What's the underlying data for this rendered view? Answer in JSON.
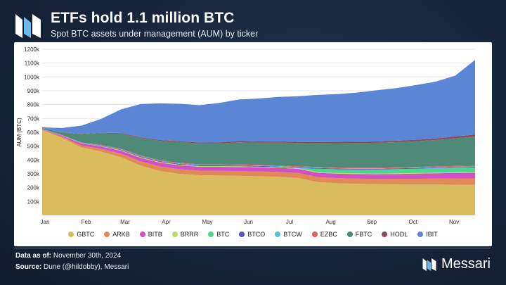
{
  "header": {
    "title": "ETFs hold 1.1 million BTC",
    "subtitle": "Spot BTC assets under management (AUM) by ticker"
  },
  "footer": {
    "data_as_of_label": "Data as of:",
    "data_as_of_value": "November 30th, 2024",
    "source_label": "Source:",
    "source_value": "Dune (@hildobby), Messari",
    "brand": "Messari"
  },
  "colors": {
    "GBTC": "#d9bc5e",
    "ARKB": "#e08a55",
    "BITB": "#d34fc6",
    "BRRR": "#b9d96a",
    "BTC": "#4dd68c",
    "BTCO": "#5a52c9",
    "BTCW": "#4fc3d9",
    "EZBC": "#d9645a",
    "FBTC": "#4f8a78",
    "HODL": "#8a4a5a",
    "IBIT": "#5b86d6"
  },
  "chart_data": {
    "type": "area",
    "stacked": true,
    "title": "ETFs hold 1.1 million BTC",
    "subtitle": "Spot BTC assets under management (AUM) by ticker",
    "ylabel": "AUM (BTC)",
    "xlabel": "",
    "ylim": [
      0,
      1200000
    ],
    "yticks": [
      "100k",
      "200k",
      "300k",
      "400k",
      "500k",
      "600k",
      "700k",
      "800k",
      "900k",
      "1000k",
      "1100k",
      "1200k"
    ],
    "xticks": [
      "Jan",
      "Feb",
      "Mar",
      "Apr",
      "May",
      "Jun",
      "Jul",
      "Aug",
      "Sep",
      "Oct",
      "Nov"
    ],
    "grid": true,
    "legend": "bottom",
    "x": [
      "Jan 11",
      "Jan 20",
      "Feb 1",
      "Feb 15",
      "Mar 1",
      "Mar 15",
      "Apr 1",
      "Apr 15",
      "May 1",
      "May 15",
      "Jun 1",
      "Jun 15",
      "Jul 1",
      "Jul 15",
      "Aug 1",
      "Aug 15",
      "Sep 1",
      "Sep 15",
      "Oct 1",
      "Oct 15",
      "Nov 1",
      "Nov 15",
      "Nov 30"
    ],
    "series": [
      {
        "name": "GBTC",
        "values": [
          617000,
          560000,
          490000,
          460000,
          420000,
          360000,
          320000,
          300000,
          290000,
          288000,
          285000,
          282000,
          278000,
          270000,
          240000,
          232000,
          228000,
          225000,
          224000,
          222000,
          222000,
          221000,
          220000
        ]
      },
      {
        "name": "ARKB",
        "values": [
          3000,
          8000,
          15000,
          20000,
          25000,
          30000,
          32000,
          33000,
          33000,
          34000,
          35000,
          35000,
          35000,
          36000,
          36000,
          37000,
          37000,
          38000,
          40000,
          42000,
          44000,
          46000,
          47000
        ]
      },
      {
        "name": "BITB",
        "values": [
          3000,
          8000,
          14000,
          18000,
          22000,
          26000,
          28000,
          28000,
          28000,
          29000,
          30000,
          30000,
          30000,
          30000,
          31000,
          32000,
          33000,
          34000,
          35000,
          37000,
          38000,
          39000,
          40000
        ]
      },
      {
        "name": "BRRR",
        "values": [
          500,
          1000,
          2000,
          3000,
          4000,
          5000,
          5000,
          5000,
          5000,
          5000,
          5000,
          5000,
          5000,
          5000,
          5000,
          5000,
          5000,
          5000,
          5000,
          5000,
          5000,
          5000,
          5000
        ]
      },
      {
        "name": "BTC",
        "values": [
          0,
          0,
          0,
          0,
          0,
          0,
          0,
          0,
          0,
          0,
          0,
          0,
          0,
          0,
          25000,
          27000,
          28000,
          29000,
          30000,
          31000,
          32000,
          33000,
          34000
        ]
      },
      {
        "name": "BTCO",
        "values": [
          500,
          1000,
          2000,
          3000,
          4000,
          5000,
          5000,
          5000,
          5000,
          5000,
          5000,
          5000,
          5000,
          5000,
          5000,
          5000,
          5000,
          5000,
          5000,
          5000,
          5000,
          5000,
          5000
        ]
      },
      {
        "name": "BTCW",
        "values": [
          500,
          1000,
          1500,
          2000,
          2500,
          3000,
          3000,
          3000,
          3000,
          3000,
          3000,
          3000,
          3000,
          3000,
          3000,
          3000,
          3000,
          3000,
          3000,
          3000,
          3000,
          3000,
          3000
        ]
      },
      {
        "name": "EZBC",
        "values": [
          500,
          1000,
          2000,
          3000,
          4000,
          5000,
          5000,
          5000,
          5000,
          5000,
          5000,
          5000,
          5000,
          5000,
          5000,
          5000,
          5000,
          5000,
          5000,
          5000,
          5000,
          5000,
          5000
        ]
      },
      {
        "name": "FBTC",
        "values": [
          5000,
          20000,
          60000,
          85000,
          110000,
          125000,
          140000,
          150000,
          150000,
          150000,
          160000,
          160000,
          165000,
          168000,
          170000,
          175000,
          178000,
          180000,
          182000,
          185000,
          190000,
          200000,
          210000
        ]
      },
      {
        "name": "HODL",
        "values": [
          500,
          1000,
          2000,
          3000,
          4000,
          5000,
          6000,
          7000,
          7000,
          8000,
          9000,
          9000,
          9000,
          9000,
          10000,
          10000,
          10000,
          10000,
          10000,
          11000,
          12000,
          13000,
          14000
        ]
      },
      {
        "name": "IBIT",
        "values": [
          5000,
          30000,
          60000,
          100000,
          170000,
          240000,
          265000,
          270000,
          270000,
          285000,
          300000,
          310000,
          320000,
          330000,
          340000,
          345000,
          355000,
          370000,
          380000,
          395000,
          410000,
          440000,
          540000
        ]
      }
    ]
  }
}
